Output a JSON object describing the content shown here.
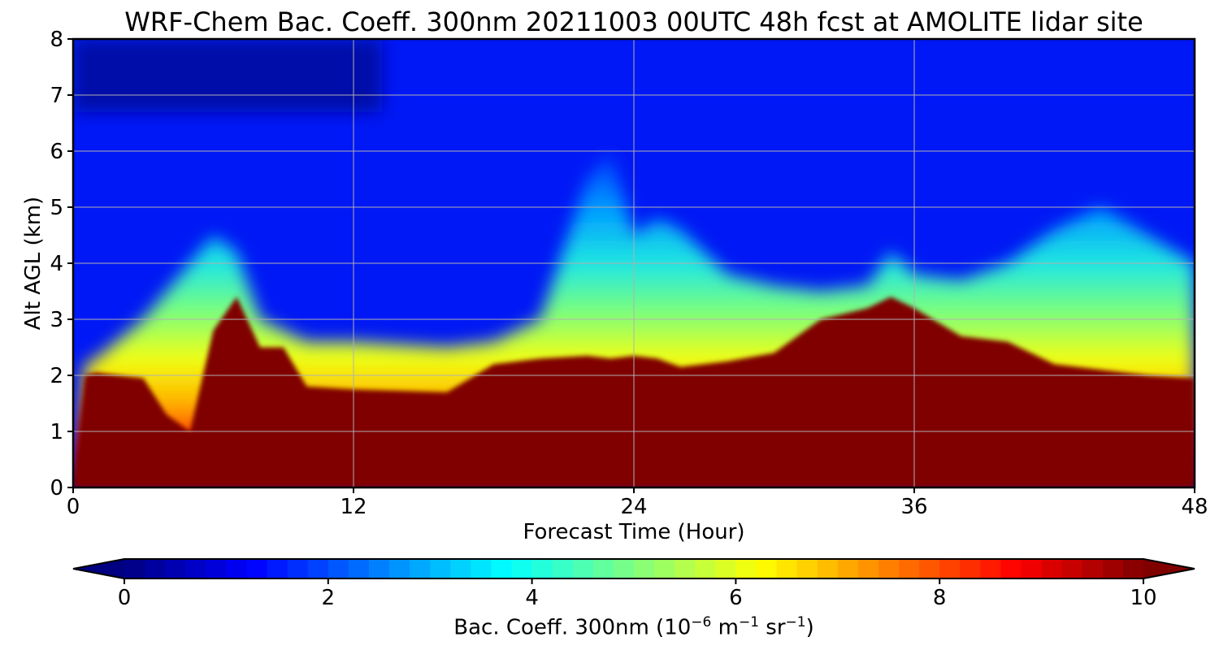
{
  "chart_data": [
    {
      "type": "heatmap",
      "title": "WRF-Chem Bac. Coeff. 300nm  20211003 00UTC 48h fcst at AMOLITE lidar site",
      "xlabel": "Forecast Time (Hour)",
      "ylabel": "Alt AGL (km)",
      "xlim": [
        0,
        48
      ],
      "ylim": [
        0,
        8
      ],
      "x_ticks": [
        "0",
        "12",
        "24",
        "36",
        "48"
      ],
      "y_ticks": [
        "0",
        "1",
        "2",
        "3",
        "4",
        "5",
        "6",
        "7",
        "8"
      ],
      "grid": true,
      "colormap": "jet",
      "x": [
        0,
        0.5,
        1,
        3,
        4,
        5,
        6,
        7,
        8,
        9,
        10,
        12,
        16,
        18,
        20,
        22,
        23,
        24,
        25,
        26,
        28,
        30,
        32,
        34,
        35,
        36,
        38,
        40,
        42,
        44,
        46,
        48
      ],
      "layer_top_km": [
        0,
        2.0,
        2.05,
        1.95,
        1.3,
        1.0,
        2.8,
        3.4,
        2.5,
        2.5,
        1.8,
        1.75,
        1.7,
        2.2,
        2.3,
        2.35,
        2.3,
        2.35,
        2.3,
        2.15,
        2.25,
        2.4,
        3.0,
        3.2,
        3.4,
        3.2,
        2.7,
        2.6,
        2.2,
        2.1,
        2.0,
        1.95
      ],
      "aerosol_top_km": [
        0,
        2.2,
        2.3,
        3.0,
        3.5,
        4.0,
        4.5,
        4.2,
        3.0,
        2.8,
        2.6,
        2.6,
        2.5,
        2.6,
        3.0,
        5.5,
        6.0,
        4.5,
        4.8,
        4.6,
        3.8,
        3.6,
        3.5,
        3.6,
        4.2,
        3.8,
        3.7,
        4.0,
        4.6,
        5.0,
        4.5,
        4.0
      ]
    },
    {
      "type": "colorbar",
      "label": "Bac. Coeff. 300nm  (10^-6 m^-1 sr^-1)",
      "label_base": "Bac. Coeff. 300nm  (10",
      "label_exp1": "−6",
      "label_unit_m": " m",
      "label_exp2": "−1",
      "label_unit_sr": " sr",
      "label_exp3": "−1",
      "label_close": ")",
      "range": [
        0,
        10
      ],
      "ticks": [
        "0",
        "2",
        "4",
        "6",
        "8",
        "10"
      ],
      "extend": "both",
      "levels": 50
    }
  ]
}
